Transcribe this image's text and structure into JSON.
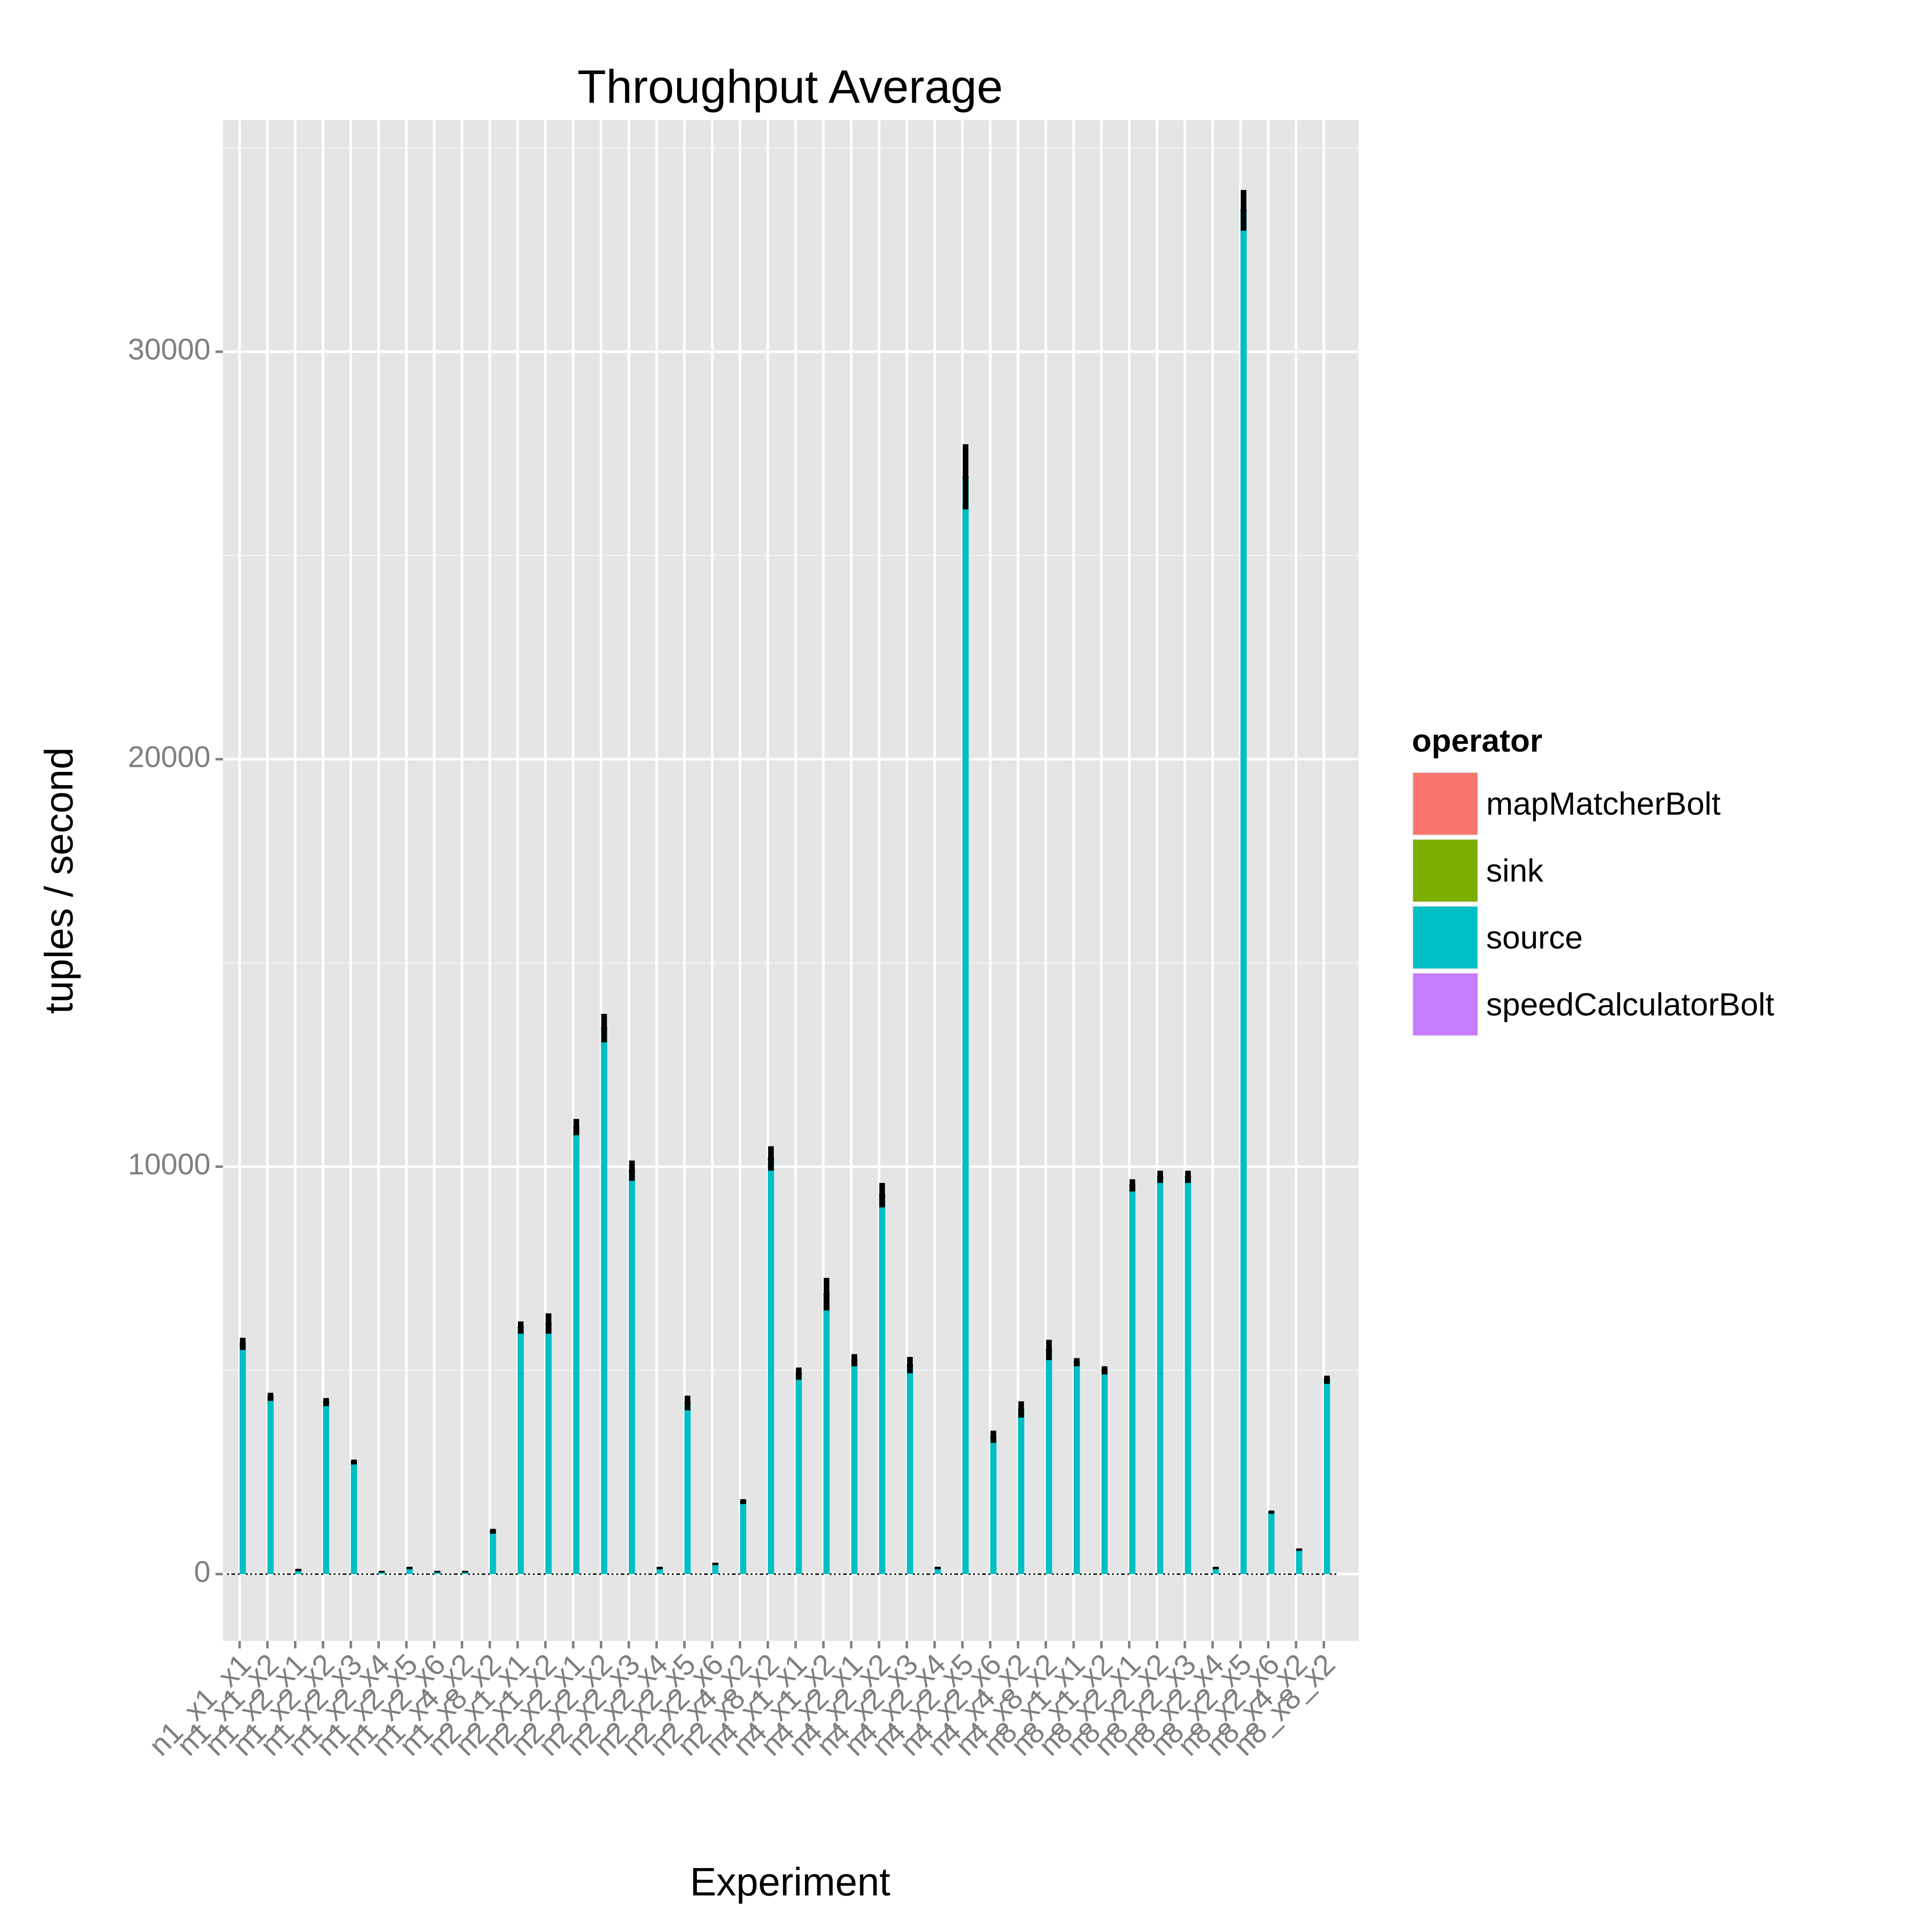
{
  "chart_data": {
    "type": "bar",
    "title": "Throughput Average",
    "x_label": "Experiment",
    "y_label": "tuples / second",
    "legend_title": "operator",
    "legend_position": "right",
    "grid": true,
    "categories": [
      "n1_x1_x1",
      "n1_x1_x2",
      "n1_x2_x1",
      "n1_x2_x2",
      "n1_x2_x3",
      "n1_x2_x4",
      "n1_x2_x5",
      "n1_x2_x6",
      "n1_x4_x2",
      "n1_x8_x2",
      "n2_x1_x1",
      "n2_x1_x2",
      "n2_x2_x1",
      "n2_x2_x2",
      "n2_x2_x3",
      "n2_x2_x4",
      "n2_x2_x5",
      "n2_x2_x6",
      "n2_x4_x2",
      "n2_x8_x2",
      "n4_x1_x1",
      "n4_x1_x2",
      "n4_x2_x1",
      "n4_x2_x2",
      "n4_x2_x3",
      "n4_x2_x4",
      "n4_x2_x5",
      "n4_x2_x6",
      "n4_x4_x2",
      "n4_x8_x2",
      "n8_x1_x1",
      "n8_x1_x2",
      "n8_x2_x1",
      "n8_x2_x2",
      "n8_x2_x3",
      "n8_x2_x4",
      "n8_x2_x5",
      "n8_x2_x6",
      "n8_x4_x2",
      "n8_x8_x2"
    ],
    "series": [
      {
        "name": "mapMatcherBolt",
        "color": "#f8766d",
        "values": [
          0,
          0,
          0,
          0,
          0,
          0,
          0,
          0,
          0,
          0,
          0,
          0,
          0,
          0,
          0,
          0,
          0,
          0,
          0,
          0,
          0,
          0,
          0,
          0,
          0,
          0,
          0,
          0,
          0,
          0,
          0,
          0,
          0,
          0,
          0,
          0,
          0,
          0,
          0,
          0
        ]
      },
      {
        "name": "sink",
        "color": "#7cae00",
        "values": [
          0,
          0,
          0,
          0,
          0,
          0,
          0,
          0,
          0,
          0,
          0,
          0,
          0,
          0,
          0,
          0,
          0,
          0,
          0,
          0,
          0,
          0,
          0,
          0,
          0,
          0,
          0,
          0,
          0,
          0,
          0,
          0,
          0,
          0,
          0,
          0,
          0,
          0,
          0,
          0
        ]
      },
      {
        "name": "source",
        "color": "#00bfc4",
        "values": [
          5650,
          4350,
          100,
          4220,
          2750,
          60,
          150,
          60,
          60,
          1050,
          6050,
          6150,
          10970,
          13400,
          9900,
          150,
          4200,
          250,
          1780,
          10200,
          4920,
          6870,
          5250,
          9300,
          5130,
          150,
          26930,
          3370,
          4040,
          5500,
          5200,
          5000,
          9540,
          9750,
          9750,
          150,
          33470,
          1520,
          600,
          4770
        ],
        "errors": [
          150,
          100,
          30,
          100,
          60,
          20,
          30,
          20,
          20,
          60,
          150,
          250,
          200,
          350,
          250,
          30,
          180,
          30,
          60,
          300,
          150,
          400,
          150,
          300,
          200,
          30,
          800,
          150,
          200,
          250,
          100,
          100,
          150,
          150,
          150,
          30,
          500,
          40,
          30,
          100
        ]
      },
      {
        "name": "speedCalculatorBolt",
        "color": "#c77cff",
        "values": [
          0,
          0,
          0,
          0,
          0,
          0,
          0,
          0,
          0,
          0,
          0,
          0,
          0,
          0,
          0,
          0,
          0,
          0,
          0,
          0,
          0,
          0,
          0,
          0,
          0,
          0,
          0,
          0,
          0,
          0,
          0,
          0,
          0,
          0,
          0,
          0,
          0,
          0,
          0,
          0
        ]
      }
    ],
    "ylim": [
      -1641,
      35684
    ],
    "yticks": [
      0,
      10000,
      20000,
      30000
    ]
  }
}
